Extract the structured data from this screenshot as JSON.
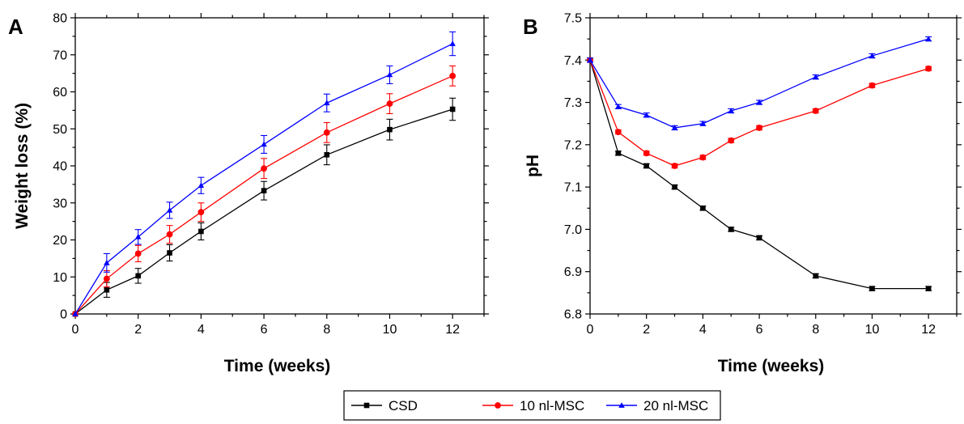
{
  "chart_data": [
    {
      "type": "line",
      "panel_label": "A",
      "title": "",
      "xlabel": "Time (weeks)",
      "ylabel": "Weight loss (%)",
      "xlim": [
        0,
        13
      ],
      "ylim": [
        0,
        80
      ],
      "xticks": [
        0,
        2,
        4,
        6,
        8,
        10,
        12
      ],
      "yticks": [
        0,
        10,
        20,
        30,
        40,
        50,
        60,
        70,
        80
      ],
      "x": [
        0,
        1,
        2,
        3,
        4,
        6,
        8,
        10,
        12
      ],
      "series": [
        {
          "name": "CSD",
          "color": "#000000",
          "marker": "square",
          "values": [
            0,
            6.5,
            10.3,
            16.5,
            22.3,
            33.3,
            43.0,
            49.8,
            55.3
          ],
          "errors": [
            0,
            2.0,
            2.0,
            2.2,
            2.3,
            2.5,
            2.7,
            2.8,
            3.0
          ]
        },
        {
          "name": "10 nl-MSC",
          "color": "#ff0000",
          "marker": "circle",
          "values": [
            0,
            9.5,
            16.3,
            21.5,
            27.5,
            39.3,
            49.0,
            56.8,
            64.3
          ],
          "errors": [
            0,
            2.2,
            2.2,
            2.4,
            2.5,
            2.7,
            2.7,
            2.7,
            2.7
          ]
        },
        {
          "name": "20 nl-MSC",
          "color": "#0000ff",
          "marker": "triangle",
          "values": [
            0,
            13.8,
            20.8,
            28.0,
            34.7,
            45.8,
            57.0,
            64.6,
            73.0
          ],
          "errors": [
            0,
            2.5,
            2.0,
            2.2,
            2.2,
            2.4,
            2.4,
            2.4,
            3.2
          ]
        }
      ],
      "grid": false
    },
    {
      "type": "line",
      "panel_label": "B",
      "title": "",
      "xlabel": "Time (weeks)",
      "ylabel": "pH",
      "xlim": [
        0,
        13
      ],
      "ylim": [
        6.8,
        7.5
      ],
      "xticks": [
        0,
        2,
        4,
        6,
        8,
        10,
        12
      ],
      "yticks": [
        6.8,
        6.9,
        7.0,
        7.1,
        7.2,
        7.3,
        7.4,
        7.5
      ],
      "x": [
        0,
        1,
        2,
        3,
        4,
        5,
        6,
        8,
        10,
        12
      ],
      "series": [
        {
          "name": "CSD",
          "color": "#000000",
          "marker": "square",
          "values": [
            7.4,
            7.18,
            7.15,
            7.1,
            7.05,
            7.0,
            6.98,
            6.89,
            6.86,
            6.86
          ],
          "errors": [
            0.005,
            0.005,
            0.005,
            0.005,
            0.005,
            0.005,
            0.005,
            0.005,
            0.005,
            0.005
          ]
        },
        {
          "name": "10 nl-MSC",
          "color": "#ff0000",
          "marker": "circle",
          "values": [
            7.4,
            7.23,
            7.18,
            7.15,
            7.17,
            7.21,
            7.24,
            7.28,
            7.34,
            7.38
          ],
          "errors": [
            0.005,
            0.005,
            0.005,
            0.005,
            0.005,
            0.005,
            0.005,
            0.005,
            0.005,
            0.005
          ]
        },
        {
          "name": "20 nl-MSC",
          "color": "#0000ff",
          "marker": "triangle",
          "values": [
            7.4,
            7.29,
            7.27,
            7.24,
            7.25,
            7.28,
            7.3,
            7.36,
            7.41,
            7.45
          ],
          "errors": [
            0.005,
            0.005,
            0.005,
            0.005,
            0.005,
            0.005,
            0.005,
            0.005,
            0.005,
            0.005
          ]
        }
      ],
      "grid": false
    }
  ],
  "legend": {
    "placement": "bottom-center",
    "items": [
      {
        "label": "CSD",
        "color": "#000000",
        "marker": "square"
      },
      {
        "label": "10 nl-MSC",
        "color": "#ff0000",
        "marker": "circle"
      },
      {
        "label": "20 nl-MSC",
        "color": "#0000ff",
        "marker": "triangle"
      }
    ]
  }
}
